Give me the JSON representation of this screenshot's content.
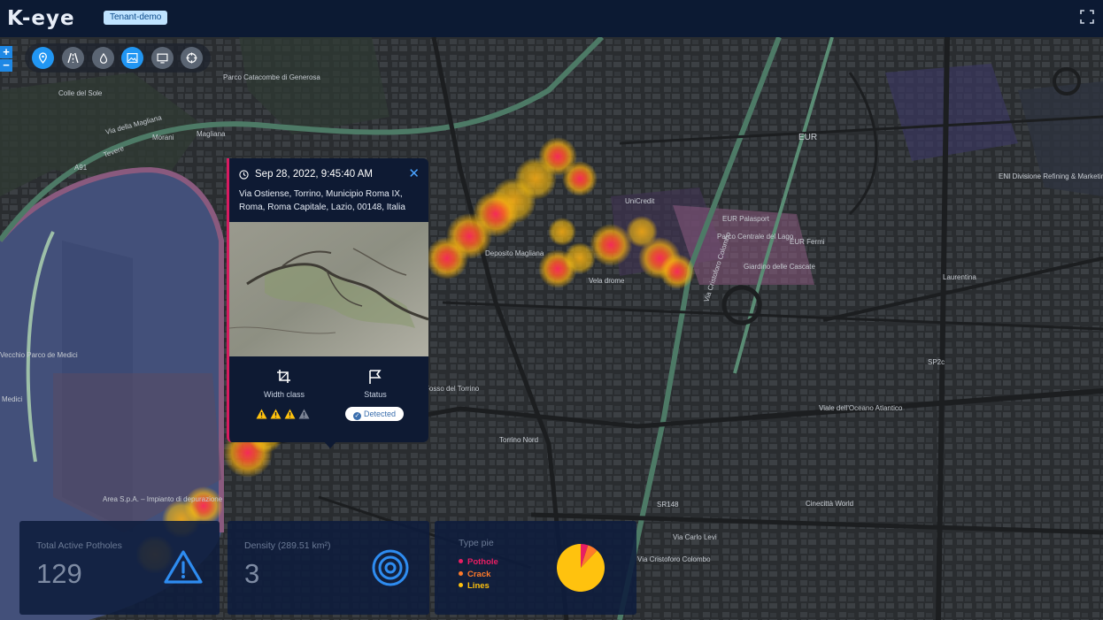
{
  "header": {
    "logo_text": "K-eye",
    "tenant_badge": "Tenant-demo"
  },
  "map": {
    "labels": [
      {
        "text": "Colle del Sole"
      },
      {
        "text": "Parco Catacombe di Generosa"
      },
      {
        "text": "Via della Magliana"
      },
      {
        "text": "Magliana"
      },
      {
        "text": "Morani"
      },
      {
        "text": "A91"
      },
      {
        "text": "Tevere"
      },
      {
        "text": "Vecchio Parco de Medici"
      },
      {
        "text": "Medici"
      },
      {
        "text": "Deposito Magliana"
      },
      {
        "text": "Vela drome"
      },
      {
        "text": "UniCredit"
      },
      {
        "text": "EUR"
      },
      {
        "text": "EUR Palasport"
      },
      {
        "text": "Parco Centrale del Lago"
      },
      {
        "text": "EUR Fermi"
      },
      {
        "text": "Giardino delle Cascate"
      },
      {
        "text": "ENI Divisione Refining & Marketing"
      },
      {
        "text": "Laurentina"
      },
      {
        "text": "Via Cristoforo Colombo"
      },
      {
        "text": "Viale dell'Oceano Atlantico"
      },
      {
        "text": "SP2c"
      },
      {
        "text": "SR148"
      },
      {
        "text": "Torrino Nord"
      },
      {
        "text": "Fosso del Torrino"
      },
      {
        "text": "Cinecittà World"
      },
      {
        "text": "Area S.p.A. – Impianto di depurazione"
      },
      {
        "text": "Via Carlo Levi"
      },
      {
        "text": "Via Cristoforo Colombo"
      }
    ]
  },
  "toolbar": {
    "tools": [
      {
        "icon": "location-pin-icon",
        "active": true
      },
      {
        "icon": "road-icon",
        "active": false
      },
      {
        "icon": "drop-icon",
        "active": false
      },
      {
        "icon": "image-icon",
        "active": true
      },
      {
        "icon": "monitor-icon",
        "active": false
      },
      {
        "icon": "crosshair-icon",
        "active": false
      }
    ]
  },
  "zoom": {
    "in_label": "+",
    "out_label": "−"
  },
  "popup": {
    "datetime": "Sep 28, 2022, 9:45:40 AM",
    "close_label": "✕",
    "address": "Via Ostiense, Torrino, Municipio Roma IX, Roma, Roma Capitale, Lazio, 00148, Italia",
    "width_class_label": "Width class",
    "status_label": "Status",
    "width_class_level": 3,
    "width_class_max": 4,
    "status_value": "Detected"
  },
  "cards": {
    "potholes": {
      "title": "Total Active Potholes",
      "value": "129",
      "icon": "warning-icon"
    },
    "density": {
      "title": "Density (289.51 km²)",
      "value": "3",
      "icon": "target-icon"
    },
    "type_pie": {
      "title": "Type pie",
      "legend": [
        {
          "label": "Pothole",
          "color": "#e91e63"
        },
        {
          "label": "Crack",
          "color": "#ff7a2a"
        },
        {
          "label": "Lines",
          "color": "#ffc20e"
        }
      ],
      "slices": [
        {
          "label": "Pothole",
          "value": 5
        },
        {
          "label": "Crack",
          "value": 7
        },
        {
          "label": "Lines",
          "value": 88
        }
      ]
    }
  },
  "colors": {
    "header_bg": "#0c1a33",
    "accent": "#2196f3",
    "heat_low": "#ffc20e",
    "heat_high": "#e91e63"
  }
}
